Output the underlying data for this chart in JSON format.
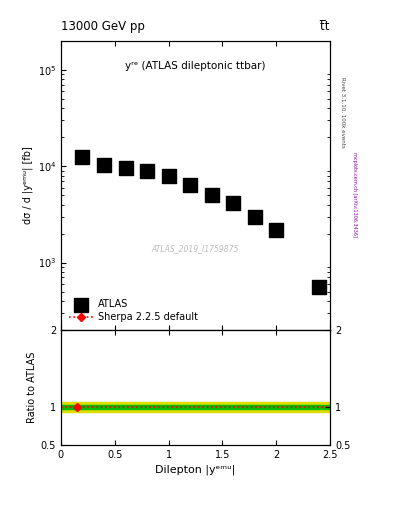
{
  "title_left": "13000 GeV pp",
  "title_right": "t̅t",
  "plot_label": "yʳᵉ (ATLAS dileptonic ttbar)",
  "watermark": "ATLAS_2019_I1759875",
  "right_label": "mcplots.cern.ch [arXiv:1306.3436]",
  "rivet_label": "Rivet 3.1.10, 100k events",
  "ylabel_main": "dσ / d |yᵉᵐᵘ| [fb]",
  "ylabel_ratio": "Ratio to ATLAS",
  "xlabel": "Dilepton |yᵉᵐᵘ|",
  "data_x": [
    0.2,
    0.4,
    0.6,
    0.8,
    1.0,
    1.2,
    1.4,
    1.6,
    1.8,
    2.0,
    2.4
  ],
  "data_y": [
    12500,
    10200,
    9700,
    8900,
    8000,
    6400,
    5000,
    4200,
    3000,
    2200,
    560
  ],
  "ylim_main": [
    200,
    200000
  ],
  "ylim_ratio": [
    0.5,
    2.0
  ],
  "xlim": [
    0,
    2.5
  ],
  "ratio_band_green_lo": 0.975,
  "ratio_band_green_hi": 1.025,
  "ratio_band_yellow_lo": 0.94,
  "ratio_band_yellow_hi": 1.06,
  "color_data": "#000000",
  "color_ratio_line": "#ff0000",
  "color_green_band": "#00bb00",
  "color_yellow_band": "#dddd00",
  "marker_data": "s",
  "marker_ratio": "D",
  "marker_size_data": 5,
  "legend_labels": [
    "ATLAS",
    "Sherpa 2.2.5 default"
  ],
  "background_color": "#ffffff",
  "xticks": [
    0,
    0.5,
    1.0,
    1.5,
    2.0,
    2.5
  ],
  "xtick_labels": [
    "0",
    "0.5",
    "1",
    "1.5",
    "2",
    "2.5"
  ],
  "yticks_ratio": [
    0.5,
    1.0,
    2.0
  ],
  "ytick_ratio_labels": [
    "0.5",
    "1",
    "2"
  ]
}
